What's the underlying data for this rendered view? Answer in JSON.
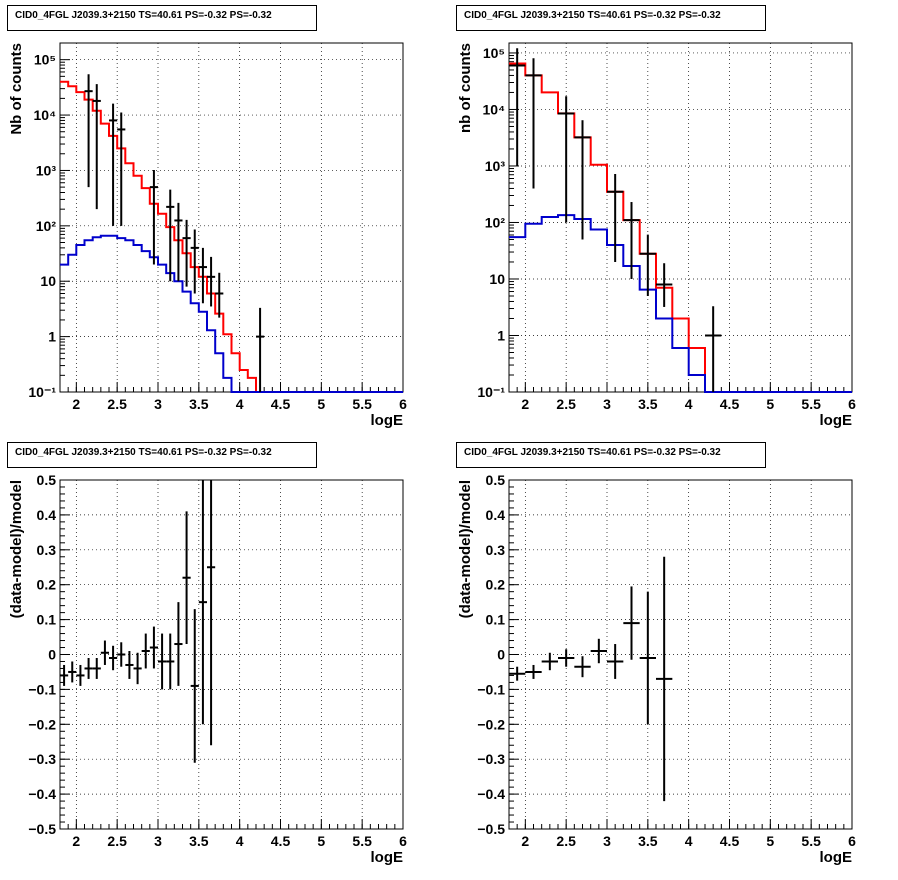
{
  "colors": {
    "data": "#000000",
    "model_total": "#ff0000",
    "model_source": "#0000cc",
    "grid": "#000000"
  },
  "chart_data": [
    {
      "id": "p1",
      "type": "line",
      "title": "CID0_4FGL J2039.3+2150 TS=40.61 PS=-0.32 PS=-0.32",
      "xlabel": "logE",
      "ylabel": "Nb of counts",
      "xlim": [
        1.8,
        6
      ],
      "ylim": [
        0.1,
        200000
      ],
      "yscale": "log",
      "grid": true,
      "xticks": [
        "2",
        "2.5",
        "3",
        "3.5",
        "4",
        "4.5",
        "5",
        "5.5",
        "6"
      ],
      "yticks": [
        "10⁻¹",
        "1",
        "10",
        "10²",
        "10³",
        "10⁴",
        "10⁵"
      ],
      "bin_width": 0.1,
      "series": [
        {
          "role": "model_total",
          "style": "step",
          "x": [
            1.85,
            1.95,
            2.05,
            2.15,
            2.25,
            2.35,
            2.45,
            2.55,
            2.65,
            2.75,
            2.85,
            2.95,
            3.05,
            3.15,
            3.25,
            3.35,
            3.45,
            3.55,
            3.65,
            3.75,
            3.85,
            3.95,
            4.05,
            4.15,
            4.25
          ],
          "values": [
            40000,
            33000,
            26000,
            19000,
            12000,
            7000,
            4200,
            2500,
            1350,
            800,
            480,
            250,
            165,
            95,
            55,
            32,
            18,
            12,
            6,
            2.6,
            1.1,
            0.5,
            0.25,
            0.18,
            0.1
          ]
        },
        {
          "role": "model_source",
          "style": "step",
          "x": [
            1.85,
            1.95,
            2.05,
            2.15,
            2.25,
            2.35,
            2.45,
            2.55,
            2.65,
            2.75,
            2.85,
            2.95,
            3.05,
            3.15,
            3.25,
            3.35,
            3.45,
            3.55,
            3.65,
            3.75,
            3.85,
            3.95,
            4.05,
            4.15,
            4.25,
            4.35,
            4.45,
            4.55,
            4.65,
            4.75,
            4.85,
            4.95,
            5.05,
            5.15,
            5.25,
            5.35,
            5.45,
            5.55,
            5.65,
            5.75,
            5.85,
            5.95
          ],
          "values": [
            20,
            30,
            45,
            55,
            62,
            66,
            66,
            60,
            55,
            45,
            35,
            27,
            20,
            14,
            10,
            6.5,
            4,
            2.8,
            1.3,
            0.5,
            0.18,
            0.1,
            0.1,
            0.1,
            0.1,
            0.1,
            0.1,
            0.1,
            0.1,
            0.1,
            0.1,
            0.1,
            0.1,
            0.1,
            0.1,
            0.1,
            0.1,
            0.1,
            0.1,
            0.1,
            0.1,
            0.1
          ]
        },
        {
          "role": "data",
          "style": "points",
          "x": [
            2.15,
            2.25,
            2.45,
            2.55,
            2.95,
            3.15,
            3.25,
            3.35,
            3.45,
            3.55,
            3.65,
            3.75,
            4.25
          ],
          "values": [
            27000,
            18000,
            8000,
            5500,
            500,
            220,
            125,
            60,
            40,
            18,
            12,
            6,
            1
          ],
          "err_low": [
            26500,
            17800,
            7900,
            5400,
            480,
            210,
            115,
            52,
            34,
            14,
            8.5,
            3.8,
            0.9
          ],
          "err_high": [
            27500,
            18200,
            8100,
            5600,
            520,
            230,
            135,
            68,
            46,
            22,
            15.5,
            8.2,
            2.3
          ]
        }
      ]
    },
    {
      "id": "p2",
      "type": "line",
      "title": "CID0_4FGL J2039.3+2150 TS=40.61 PS=-0.32 PS=-0.32",
      "xlabel": "logE",
      "ylabel": "nb of counts",
      "xlim": [
        1.8,
        6
      ],
      "ylim": [
        0.1,
        150000
      ],
      "yscale": "log",
      "grid": true,
      "xticks": [
        "2",
        "2.5",
        "3",
        "3.5",
        "4",
        "4.5",
        "5",
        "5.5",
        "6"
      ],
      "yticks": [
        "10⁻¹",
        "1",
        "10",
        "10²",
        "10³",
        "10⁴",
        "10⁵"
      ],
      "bin_width": 0.2,
      "series": [
        {
          "role": "model_total",
          "style": "step",
          "x": [
            1.9,
            2.1,
            2.3,
            2.5,
            2.7,
            2.9,
            3.1,
            3.3,
            3.5,
            3.7,
            3.9,
            4.1,
            4.3
          ],
          "values": [
            65000,
            40000,
            20000,
            8500,
            3200,
            1050,
            350,
            110,
            28,
            7,
            2,
            0.6,
            0.1
          ]
        },
        {
          "role": "model_source",
          "style": "step",
          "x": [
            1.9,
            2.1,
            2.3,
            2.5,
            2.7,
            2.9,
            3.1,
            3.3,
            3.5,
            3.7,
            3.9,
            4.1,
            4.3,
            4.5,
            4.7,
            4.9,
            5.1,
            5.3,
            5.5,
            5.7,
            5.9
          ],
          "values": [
            55,
            95,
            125,
            135,
            115,
            75,
            40,
            17,
            6.5,
            2,
            0.6,
            0.2,
            0.1,
            0.1,
            0.1,
            0.1,
            0.1,
            0.1,
            0.1,
            0.1,
            0.1
          ]
        },
        {
          "role": "data",
          "style": "points",
          "x": [
            1.9,
            2.1,
            2.5,
            2.7,
            3.1,
            3.3,
            3.5,
            3.7,
            4.3
          ],
          "values": [
            60000,
            40000,
            8500,
            3200,
            350,
            110,
            28,
            8,
            1
          ],
          "err_low": [
            59000,
            39600,
            8400,
            3150,
            330,
            100,
            23,
            4.8,
            0.9
          ],
          "err_high": [
            61000,
            40400,
            8600,
            3250,
            370,
            120,
            33,
            11,
            2.3
          ]
        }
      ]
    },
    {
      "id": "p3",
      "type": "scatter",
      "title": "CID0_4FGL J2039.3+2150 TS=40.61 PS=-0.32 PS=-0.32",
      "xlabel": "logE",
      "ylabel": "(data-model)/model",
      "xlim": [
        1.8,
        6
      ],
      "ylim": [
        -0.5,
        0.5
      ],
      "yscale": "linear",
      "grid": true,
      "xticks": [
        "2",
        "2.5",
        "3",
        "3.5",
        "4",
        "4.5",
        "5",
        "5.5",
        "6"
      ],
      "yticks": [
        "−0.5",
        "−0.4",
        "−0.3",
        "−0.2",
        "−0.1",
        "0",
        "0.1",
        "0.2",
        "0.3",
        "0.4",
        "0.5"
      ],
      "bin_width": 0.1,
      "series": [
        {
          "role": "data",
          "style": "points",
          "x": [
            1.85,
            1.95,
            2.05,
            2.15,
            2.25,
            2.35,
            2.45,
            2.55,
            2.65,
            2.75,
            2.85,
            2.95,
            3.05,
            3.15,
            3.25,
            3.35,
            3.45,
            3.55,
            3.65
          ],
          "values": [
            -0.06,
            -0.05,
            -0.06,
            -0.04,
            -0.04,
            0.005,
            -0.01,
            0.0,
            -0.03,
            -0.04,
            0.01,
            0.02,
            -0.02,
            -0.02,
            0.03,
            0.22,
            -0.09,
            0.15,
            0.25
          ],
          "err": [
            0.03,
            0.03,
            0.03,
            0.03,
            0.03,
            0.035,
            0.035,
            0.035,
            0.04,
            0.045,
            0.05,
            0.06,
            0.08,
            0.08,
            0.12,
            0.19,
            0.22,
            0.35,
            0.51
          ]
        }
      ]
    },
    {
      "id": "p4",
      "type": "scatter",
      "title": "CID0_4FGL J2039.3+2150 TS=40.61 PS=-0.32 PS=-0.32",
      "xlabel": "logE",
      "ylabel": "(data-model)/model",
      "xlim": [
        1.8,
        6
      ],
      "ylim": [
        -0.5,
        0.5
      ],
      "yscale": "linear",
      "grid": true,
      "xticks": [
        "2",
        "2.5",
        "3",
        "3.5",
        "4",
        "4.5",
        "5",
        "5.5",
        "6"
      ],
      "yticks": [
        "−0.5",
        "−0.4",
        "−0.3",
        "−0.2",
        "−0.1",
        "0",
        "0.1",
        "0.2",
        "0.3",
        "0.4",
        "0.5"
      ],
      "bin_width": 0.2,
      "series": [
        {
          "role": "data",
          "style": "points",
          "x": [
            1.9,
            2.1,
            2.3,
            2.5,
            2.7,
            2.9,
            3.1,
            3.3,
            3.5,
            3.7
          ],
          "values": [
            -0.055,
            -0.05,
            -0.02,
            -0.01,
            -0.035,
            0.01,
            -0.02,
            0.09,
            -0.01,
            -0.07
          ],
          "err": [
            0.02,
            0.02,
            0.025,
            0.025,
            0.03,
            0.035,
            0.05,
            0.105,
            0.19,
            0.35
          ]
        }
      ]
    }
  ]
}
